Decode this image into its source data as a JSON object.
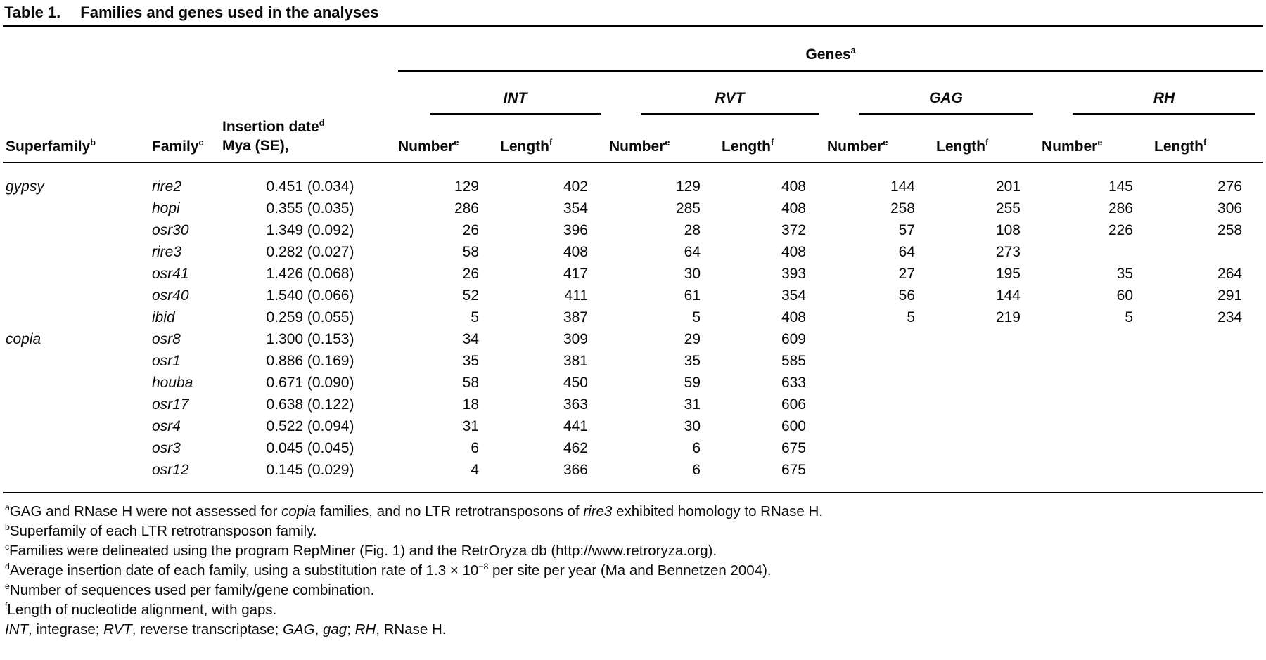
{
  "table": {
    "title_label": "Table 1.",
    "title_text": "Families and genes used in the analyses",
    "genes_header": {
      "text": "Genes",
      "sup": "a"
    },
    "groups": [
      {
        "name": "INT"
      },
      {
        "name": "RVT"
      },
      {
        "name": "GAG"
      },
      {
        "name": "RH"
      }
    ],
    "col_headers": {
      "superfamily": {
        "text": "Superfamily",
        "sup": "b"
      },
      "family": {
        "text": "Family",
        "sup": "c"
      },
      "insertion_line1": {
        "text": "Insertion date",
        "sup": "d"
      },
      "insertion_line2": "Mya (SE),",
      "number": {
        "text": "Number",
        "sup": "e"
      },
      "length": {
        "text": "Length",
        "sup": "f"
      }
    },
    "rows": [
      {
        "superfamily": "gypsy",
        "family": "rire2",
        "insertion": "0.451 (0.034)",
        "int_number": "129",
        "int_length": "402",
        "rvt_number": "129",
        "rvt_length": "408",
        "gag_number": "144",
        "gag_length": "201",
        "rh_number": "145",
        "rh_length": "276"
      },
      {
        "superfamily": "",
        "family": "hopi",
        "insertion": "0.355 (0.035)",
        "int_number": "286",
        "int_length": "354",
        "rvt_number": "285",
        "rvt_length": "408",
        "gag_number": "258",
        "gag_length": "255",
        "rh_number": "286",
        "rh_length": "306"
      },
      {
        "superfamily": "",
        "family": "osr30",
        "insertion": "1.349 (0.092)",
        "int_number": "26",
        "int_length": "396",
        "rvt_number": "28",
        "rvt_length": "372",
        "gag_number": "57",
        "gag_length": "108",
        "rh_number": "226",
        "rh_length": "258"
      },
      {
        "superfamily": "",
        "family": "rire3",
        "insertion": "0.282 (0.027)",
        "int_number": "58",
        "int_length": "408",
        "rvt_number": "64",
        "rvt_length": "408",
        "gag_number": "64",
        "gag_length": "273",
        "rh_number": "",
        "rh_length": ""
      },
      {
        "superfamily": "",
        "family": "osr41",
        "insertion": "1.426 (0.068)",
        "int_number": "26",
        "int_length": "417",
        "rvt_number": "30",
        "rvt_length": "393",
        "gag_number": "27",
        "gag_length": "195",
        "rh_number": "35",
        "rh_length": "264"
      },
      {
        "superfamily": "",
        "family": "osr40",
        "insertion": "1.540 (0.066)",
        "int_number": "52",
        "int_length": "411",
        "rvt_number": "61",
        "rvt_length": "354",
        "gag_number": "56",
        "gag_length": "144",
        "rh_number": "60",
        "rh_length": "291"
      },
      {
        "superfamily": "",
        "family": "ibid",
        "insertion": "0.259 (0.055)",
        "int_number": "5",
        "int_length": "387",
        "rvt_number": "5",
        "rvt_length": "408",
        "gag_number": "5",
        "gag_length": "219",
        "rh_number": "5",
        "rh_length": "234"
      },
      {
        "superfamily": "copia",
        "family": "osr8",
        "insertion": "1.300 (0.153)",
        "int_number": "34",
        "int_length": "309",
        "rvt_number": "29",
        "rvt_length": "609",
        "gag_number": "",
        "gag_length": "",
        "rh_number": "",
        "rh_length": ""
      },
      {
        "superfamily": "",
        "family": "osr1",
        "insertion": "0.886 (0.169)",
        "int_number": "35",
        "int_length": "381",
        "rvt_number": "35",
        "rvt_length": "585",
        "gag_number": "",
        "gag_length": "",
        "rh_number": "",
        "rh_length": ""
      },
      {
        "superfamily": "",
        "family": "houba",
        "insertion": "0.671 (0.090)",
        "int_number": "58",
        "int_length": "450",
        "rvt_number": "59",
        "rvt_length": "633",
        "gag_number": "",
        "gag_length": "",
        "rh_number": "",
        "rh_length": ""
      },
      {
        "superfamily": "",
        "family": "osr17",
        "insertion": "0.638 (0.122)",
        "int_number": "18",
        "int_length": "363",
        "rvt_number": "31",
        "rvt_length": "606",
        "gag_number": "",
        "gag_length": "",
        "rh_number": "",
        "rh_length": ""
      },
      {
        "superfamily": "",
        "family": "osr4",
        "insertion": "0.522 (0.094)",
        "int_number": "31",
        "int_length": "441",
        "rvt_number": "30",
        "rvt_length": "600",
        "gag_number": "",
        "gag_length": "",
        "rh_number": "",
        "rh_length": ""
      },
      {
        "superfamily": "",
        "family": "osr3",
        "insertion": "0.045 (0.045)",
        "int_number": "6",
        "int_length": "462",
        "rvt_number": "6",
        "rvt_length": "675",
        "gag_number": "",
        "gag_length": "",
        "rh_number": "",
        "rh_length": ""
      },
      {
        "superfamily": "",
        "family": "osr12",
        "insertion": "0.145 (0.029)",
        "int_number": "4",
        "int_length": "366",
        "rvt_number": "6",
        "rvt_length": "675",
        "gag_number": "",
        "gag_length": "",
        "rh_number": "",
        "rh_length": ""
      }
    ]
  },
  "footnotes": [
    {
      "marker": "a",
      "segments": [
        {
          "t": "GAG and RNase H were not assessed for "
        },
        {
          "t": "copia",
          "i": true
        },
        {
          "t": " families, and no LTR retrotransposons of "
        },
        {
          "t": "rire3",
          "i": true
        },
        {
          "t": " exhibited homology to RNase H."
        }
      ]
    },
    {
      "marker": "b",
      "segments": [
        {
          "t": "Superfamily of each LTR retrotransposon family."
        }
      ]
    },
    {
      "marker": "c",
      "segments": [
        {
          "t": "Families were delineated using the program RepMiner (Fig. 1) and the RetrOryza db (http://www.retroryza.org)."
        }
      ]
    },
    {
      "marker": "d",
      "segments": [
        {
          "t": "Average insertion date of each family, using a substitution rate of 1.3 × 10"
        },
        {
          "t": "−8",
          "sup": true
        },
        {
          "t": " per site per year (Ma and Bennetzen 2004)."
        }
      ]
    },
    {
      "marker": "e",
      "segments": [
        {
          "t": "Number of sequences used per family/gene combination."
        }
      ]
    },
    {
      "marker": "f",
      "segments": [
        {
          "t": "Length of nucleotide alignment, with gaps."
        }
      ]
    },
    {
      "marker": "",
      "segments": [
        {
          "t": "INT",
          "i": true
        },
        {
          "t": ", integrase; "
        },
        {
          "t": "RVT",
          "i": true
        },
        {
          "t": ", reverse transcriptase; "
        },
        {
          "t": "GAG",
          "i": true
        },
        {
          "t": ", "
        },
        {
          "t": "gag",
          "i": true
        },
        {
          "t": "; "
        },
        {
          "t": "RH",
          "i": true
        },
        {
          "t": ", RNase H."
        }
      ]
    }
  ]
}
